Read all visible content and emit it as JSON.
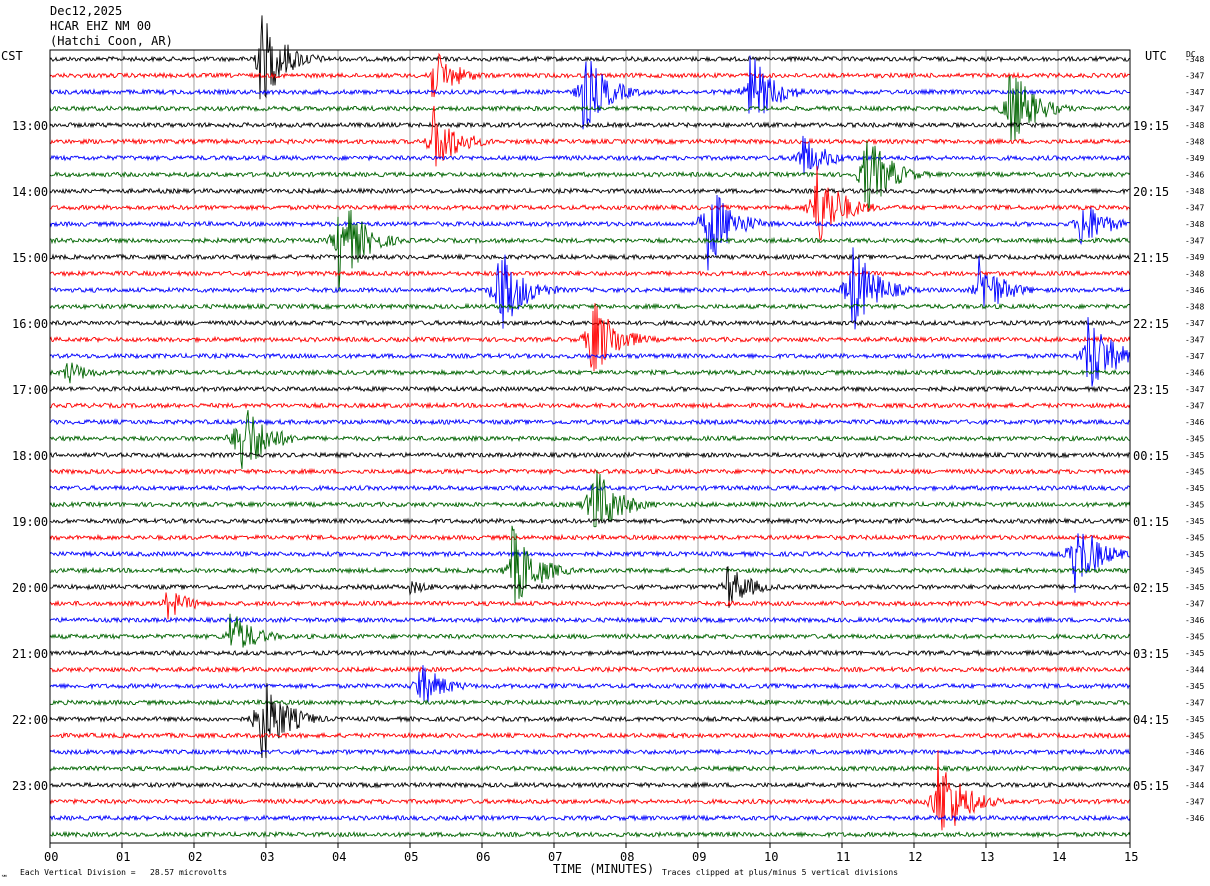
{
  "header": {
    "date": "Dec12,2025",
    "station": "HCAR EHZ NM 00",
    "location": "(Hatchi Coon, AR)"
  },
  "labels": {
    "left_tz": "CST",
    "right_tz": "UTC",
    "dc": "DC"
  },
  "footer": {
    "vertical_division": "Each Vertical Division =   28.57 microvolts",
    "clip_note": "Traces clipped at plus/minus 5 vertical divisions",
    "corner_mark": "℠"
  },
  "chart_data": {
    "type": "line",
    "subtype": "helicorder seismogram",
    "xlabel": "TIME (MINUTES)",
    "x_ticks": [
      "00",
      "01",
      "02",
      "03",
      "04",
      "05",
      "06",
      "07",
      "08",
      "09",
      "10",
      "11",
      "12",
      "13",
      "14",
      "15"
    ],
    "xlim": [
      0,
      15
    ],
    "minutes_per_line": 15,
    "line_count": 48,
    "trace_colors": [
      "#000000",
      "#ff0000",
      "#0000ff",
      "#006400"
    ],
    "grid": true,
    "left_hour_labels": [
      {
        "line": 4,
        "text": "13:00"
      },
      {
        "line": 8,
        "text": "14:00"
      },
      {
        "line": 12,
        "text": "15:00"
      },
      {
        "line": 16,
        "text": "16:00"
      },
      {
        "line": 20,
        "text": "17:00"
      },
      {
        "line": 24,
        "text": "18:00"
      },
      {
        "line": 28,
        "text": "19:00"
      },
      {
        "line": 32,
        "text": "20:00"
      },
      {
        "line": 36,
        "text": "21:00"
      },
      {
        "line": 40,
        "text": "22:00"
      },
      {
        "line": 44,
        "text": "23:00"
      }
    ],
    "right_hour_labels": [
      {
        "line": 4,
        "text": "19:15"
      },
      {
        "line": 8,
        "text": "20:15"
      },
      {
        "line": 12,
        "text": "21:15"
      },
      {
        "line": 16,
        "text": "22:15"
      },
      {
        "line": 20,
        "text": "23:15"
      },
      {
        "line": 24,
        "text": "00:15"
      },
      {
        "line": 28,
        "text": "01:15"
      },
      {
        "line": 32,
        "text": "02:15"
      },
      {
        "line": 36,
        "text": "03:15"
      },
      {
        "line": 40,
        "text": "04:15"
      },
      {
        "line": 44,
        "text": "05:15"
      }
    ],
    "dc_offsets": [
      "-348",
      "-347",
      "-347",
      "-347",
      "-348",
      "-348",
      "-349",
      "-346",
      "-348",
      "-347",
      "-348",
      "-347",
      "-349",
      "-348",
      "-346",
      "-348",
      "-347",
      "-347",
      "-347",
      "-346",
      "-347",
      "-347",
      "-346",
      "-345",
      "-345",
      "-345",
      "-345",
      "-345",
      "-345",
      "-345",
      "-345",
      "-345",
      "-345",
      "-347",
      "-346",
      "-345",
      "-345",
      "-344",
      "-345",
      "-347",
      "-345",
      "-345",
      "-346",
      "-347",
      "-344",
      "-347",
      "-346"
    ],
    "events": [
      {
        "line": 0,
        "minute": 2.9,
        "amp": 55
      },
      {
        "line": 1,
        "minute": 5.3,
        "amp": 30
      },
      {
        "line": 2,
        "minute": 7.4,
        "amp": 45
      },
      {
        "line": 2,
        "minute": 9.7,
        "amp": 45
      },
      {
        "line": 3,
        "minute": 13.3,
        "amp": 50
      },
      {
        "line": 5,
        "minute": 5.3,
        "amp": 40
      },
      {
        "line": 6,
        "minute": 10.4,
        "amp": 30
      },
      {
        "line": 7,
        "minute": 11.3,
        "amp": 50
      },
      {
        "line": 9,
        "minute": 10.6,
        "amp": 55
      },
      {
        "line": 10,
        "minute": 9.1,
        "amp": 55
      },
      {
        "line": 10,
        "minute": 14.3,
        "amp": 30
      },
      {
        "line": 11,
        "minute": 4.0,
        "amp": 55
      },
      {
        "line": 14,
        "minute": 6.2,
        "amp": 55
      },
      {
        "line": 14,
        "minute": 11.1,
        "amp": 55
      },
      {
        "line": 14,
        "minute": 12.9,
        "amp": 35
      },
      {
        "line": 17,
        "minute": 7.5,
        "amp": 50
      },
      {
        "line": 18,
        "minute": 14.4,
        "amp": 50
      },
      {
        "line": 19,
        "minute": 0.2,
        "amp": 15
      },
      {
        "line": 23,
        "minute": 2.6,
        "amp": 55
      },
      {
        "line": 27,
        "minute": 7.5,
        "amp": 50
      },
      {
        "line": 30,
        "minute": 14.2,
        "amp": 45
      },
      {
        "line": 31,
        "minute": 6.4,
        "amp": 50
      },
      {
        "line": 32,
        "minute": 9.4,
        "amp": 25
      },
      {
        "line": 32,
        "minute": 5.0,
        "amp": 8
      },
      {
        "line": 33,
        "minute": 1.6,
        "amp": 18
      },
      {
        "line": 35,
        "minute": 2.5,
        "amp": 28
      },
      {
        "line": 38,
        "minute": 5.1,
        "amp": 28
      },
      {
        "line": 40,
        "minute": 2.9,
        "amp": 55
      },
      {
        "line": 45,
        "minute": 12.3,
        "amp": 60
      }
    ]
  }
}
